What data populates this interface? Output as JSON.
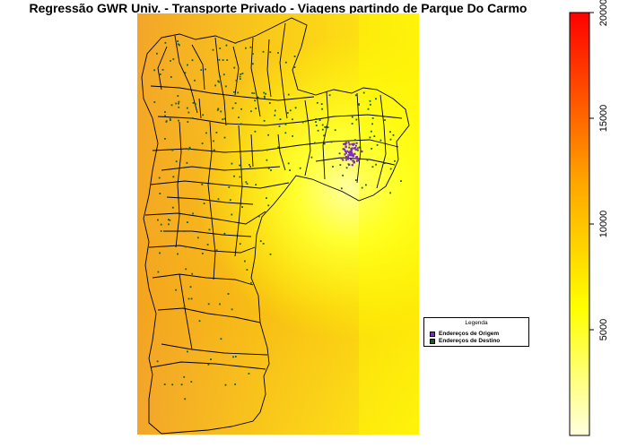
{
  "title": "Regressão GWR Univ. - Transporte Privado - Viagens partindo de Parque Do Carmo",
  "legend": {
    "title": "Legenda",
    "items": [
      {
        "label": "Endereços de Origem",
        "color": "#7b2fbf"
      },
      {
        "label": "Endereços de Destino",
        "color": "#1a5e1a"
      }
    ]
  },
  "colorbar": {
    "min": 0,
    "max": 20000,
    "ticks": [
      "5000",
      "10000",
      "15000",
      "20000"
    ],
    "tick_values": [
      5000,
      10000,
      15000,
      20000
    ],
    "colors": [
      "#ffffe0",
      "#ffff00",
      "#ffa500",
      "#ff0000"
    ]
  },
  "colors": {
    "surface_high": "#f5a623",
    "surface_low": "#ffff40",
    "district_border": "#000000",
    "origin_points": "#7b2fbf",
    "destination_points": "#1a5e1a"
  }
}
